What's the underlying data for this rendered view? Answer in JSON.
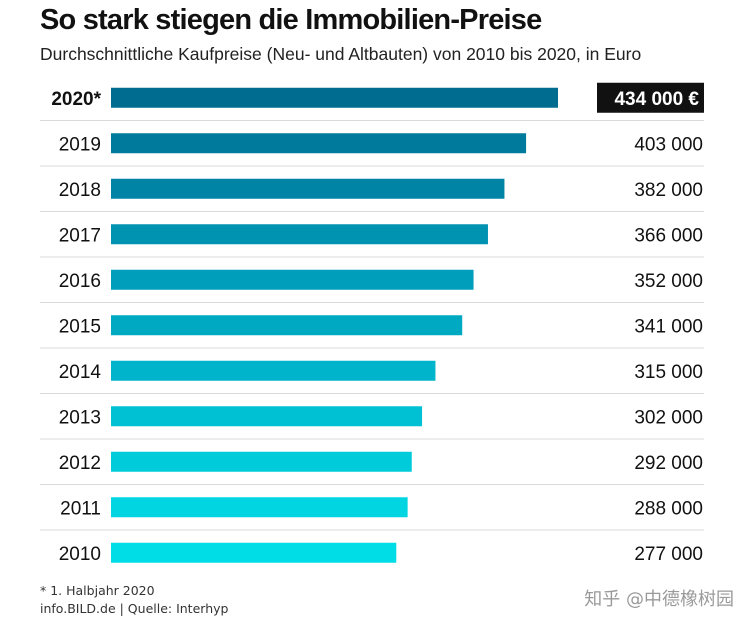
{
  "chart_data": {
    "type": "bar",
    "orientation": "horizontal",
    "title": "So stark stiegen die Immobilien-Preise",
    "subtitle": "Durchschnittliche Kaufpreise (Neu- und Altbauten) von 2010 bis 2020, in Euro",
    "categories": [
      "2020*",
      "2019",
      "2018",
      "2017",
      "2016",
      "2015",
      "2014",
      "2013",
      "2012",
      "2011",
      "2010"
    ],
    "values": [
      434000,
      403000,
      382000,
      366000,
      352000,
      341000,
      315000,
      302000,
      292000,
      288000,
      277000
    ],
    "value_labels": [
      "434 000 €",
      "403 000",
      "382 000",
      "366 000",
      "352 000",
      "341 000",
      "315 000",
      "302 000",
      "292 000",
      "288 000",
      "277 000"
    ],
    "highlight_index": 0,
    "bar_colors": [
      "#006c8f",
      "#007a9c",
      "#0084a6",
      "#0092b1",
      "#009eba",
      "#00a9c2",
      "#00b5cb",
      "#00c0d3",
      "#00cbda",
      "#00d5e1",
      "#00dde6"
    ],
    "xlim": [
      0,
      434000
    ],
    "xlabel": "",
    "ylabel": "",
    "grid": false,
    "legend": "none"
  },
  "footnote": "* 1. Halbjahr 2020",
  "source": "info.BILD.de | Quelle: Interhyp",
  "watermark": "知乎 @中德橡树园"
}
